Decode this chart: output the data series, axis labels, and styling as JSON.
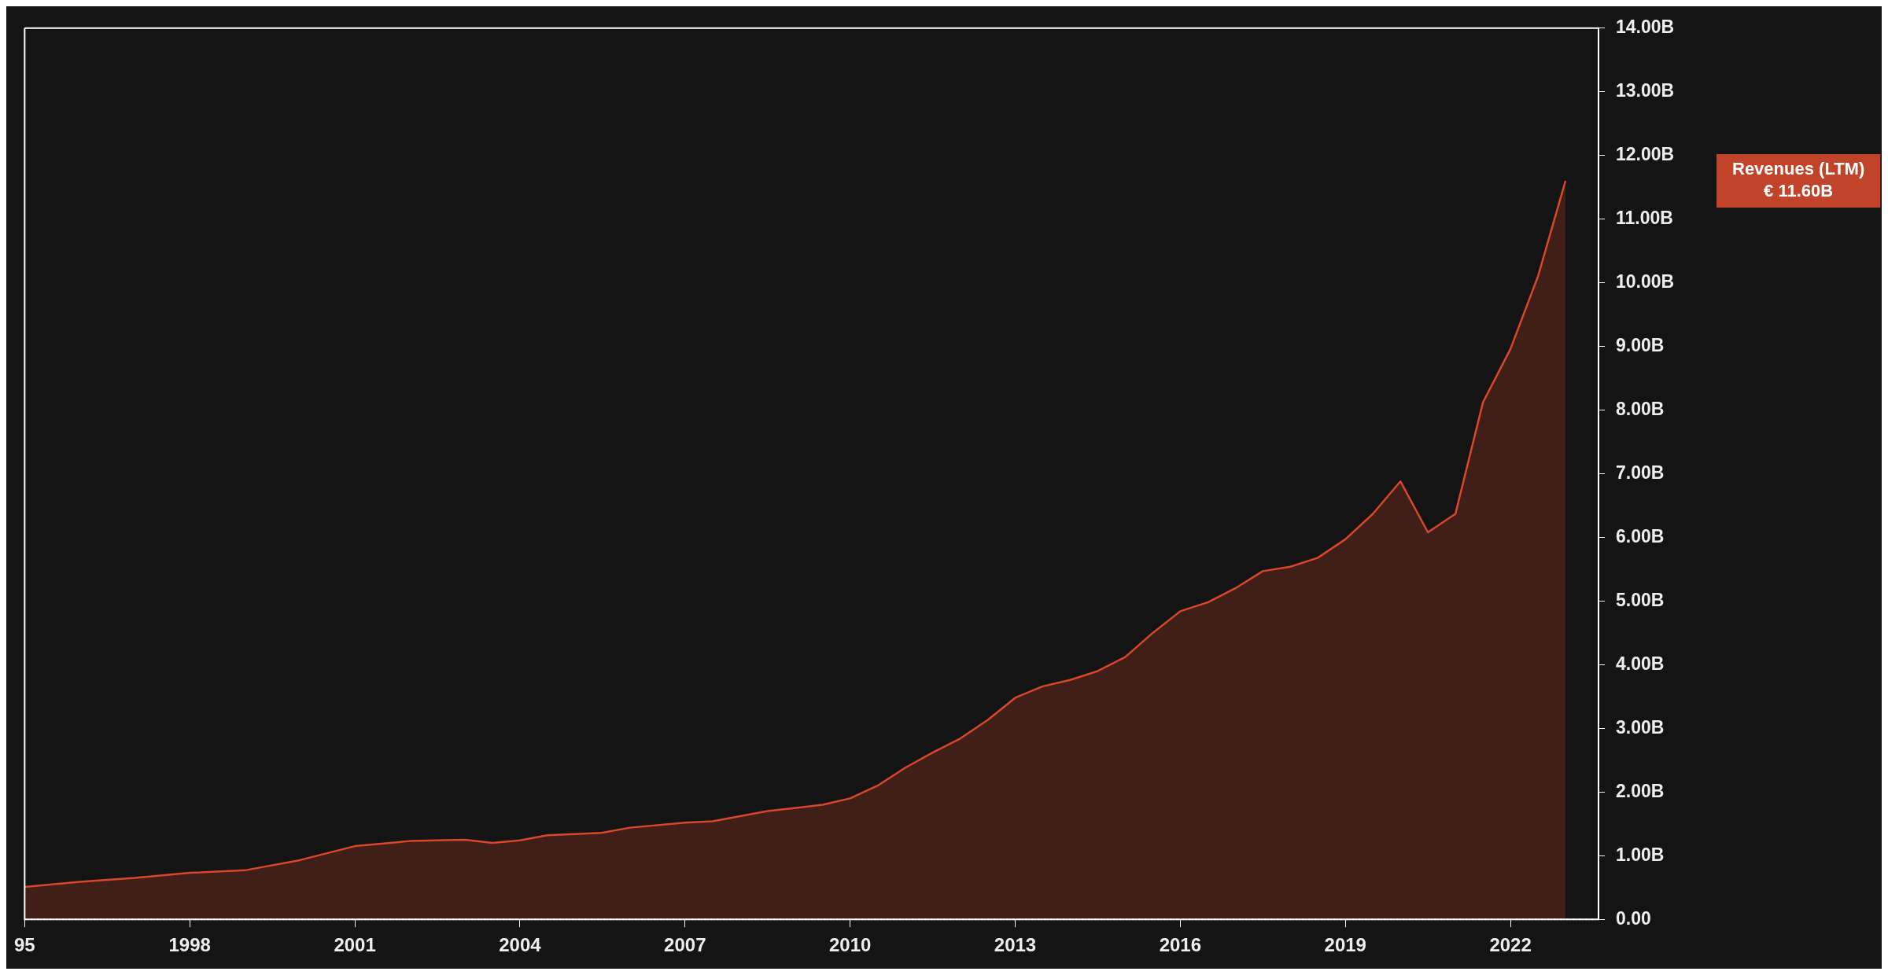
{
  "chart_data": {
    "type": "area",
    "x": [
      1995,
      1996,
      1997,
      1998,
      1999,
      2000,
      2001,
      2002,
      2003,
      2003.5,
      2004,
      2004.5,
      2005.5,
      2006,
      2007,
      2007.5,
      2008.5,
      2009.5,
      2010,
      2010.5,
      2011,
      2011.5,
      2012,
      2012.5,
      2013,
      2013.5,
      2014,
      2014.5,
      2015,
      2015.5,
      2016,
      2016.5,
      2017,
      2017.5,
      2018,
      2018.5,
      2019,
      2019.5,
      2020,
      2020.5,
      2021,
      2021.5,
      2022,
      2022.5,
      2023
    ],
    "series": [
      {
        "color": "#d9472b",
        "values": [
          0.51,
          0.59,
          0.65,
          0.73,
          0.77,
          0.93,
          1.15,
          1.23,
          1.25,
          1.2,
          1.24,
          1.32,
          1.36,
          1.44,
          1.52,
          1.54,
          1.7,
          1.8,
          1.9,
          2.1,
          2.38,
          2.62,
          2.84,
          3.13,
          3.48,
          3.66,
          3.76,
          3.9,
          4.12,
          4.5,
          4.84,
          4.98,
          5.2,
          5.47,
          5.54,
          5.68,
          5.97,
          6.37,
          6.88,
          6.08,
          6.37,
          8.12,
          8.96,
          10.1,
          11.6
        ]
      }
    ],
    "xlim": [
      1995,
      2023.6
    ],
    "xticks": [
      {
        "value": 1995,
        "label": "95"
      },
      1998,
      2001,
      2004,
      2007,
      2010,
      2013,
      2016,
      2019,
      2022
    ],
    "ylim": [
      0,
      14
    ],
    "yticks": [
      {
        "value": 0,
        "label": "0.00"
      },
      {
        "value": 1,
        "label": "1.00B"
      },
      {
        "value": 2,
        "label": "2.00B"
      },
      {
        "value": 3,
        "label": "3.00B"
      },
      {
        "value": 4,
        "label": "4.00B"
      },
      {
        "value": 5,
        "label": "5.00B"
      },
      {
        "value": 6,
        "label": "6.00B"
      },
      {
        "value": 7,
        "label": "7.00B"
      },
      {
        "value": 8,
        "label": "8.00B"
      },
      {
        "value": 9,
        "label": "9.00B"
      },
      {
        "value": 10,
        "label": "10.00B"
      },
      {
        "value": 11,
        "label": "11.00B"
      },
      {
        "value": 12,
        "label": "12.00B"
      },
      {
        "value": 13,
        "label": "13.00B"
      },
      {
        "value": 14,
        "label": "14.00B"
      }
    ],
    "ref_lines": [
      {
        "axis": "y",
        "value": 0,
        "color": "#cccccc",
        "line_style": "dotted"
      }
    ],
    "annotations": [
      "Revenues (LTM)\n€ 11.60B"
    ],
    "grid": false,
    "legend": false
  }
}
